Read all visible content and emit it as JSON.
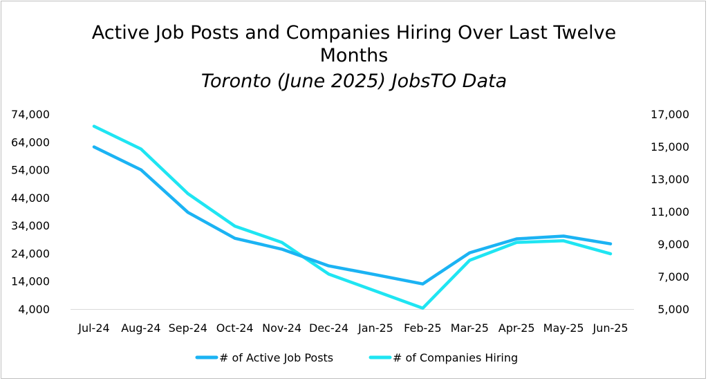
{
  "chart_data": {
    "type": "line",
    "title": "Active Job Posts and Companies Hiring Over Last Twelve Months",
    "title_lines": [
      "Active Job Posts and Companies Hiring Over Last Twelve",
      "Months"
    ],
    "subtitle": "Toronto (June 2025) JobsTO Data",
    "categories": [
      "Jul-24",
      "Aug-24",
      "Sep-24",
      "Oct-24",
      "Nov-24",
      "Dec-24",
      "Jan-25",
      "Feb-25",
      "Mar-25",
      "Apr-25",
      "May-25",
      "Jun-25"
    ],
    "y_left": {
      "min": 4000,
      "max": 74000,
      "ticks": [
        4000,
        14000,
        24000,
        34000,
        44000,
        54000,
        64000,
        74000
      ],
      "tick_labels": [
        "4,000",
        "14,000",
        "24,000",
        "34,000",
        "44,000",
        "54,000",
        "64,000",
        "74,000"
      ]
    },
    "y_right": {
      "min": 5000,
      "max": 17000,
      "ticks": [
        5000,
        7000,
        9000,
        11000,
        13000,
        15000,
        17000
      ],
      "tick_labels": [
        "5,000",
        "7,000",
        "9,000",
        "11,000",
        "13,000",
        "15,000",
        "17,000"
      ]
    },
    "series": [
      {
        "name": "# of Active Job Posts",
        "axis": "left",
        "color": "#1BB3F3",
        "values": [
          62200,
          54000,
          38700,
          29400,
          25500,
          19500,
          16300,
          13000,
          24200,
          29200,
          30200,
          27400
        ]
      },
      {
        "name": "# of Companies Hiring",
        "axis": "right",
        "color": "#1FE5F2",
        "values": [
          16250,
          14850,
          12100,
          10100,
          9100,
          7150,
          6100,
          5050,
          8000,
          9100,
          9200,
          8400
        ]
      }
    ],
    "legend_position": "bottom",
    "grid": false
  }
}
